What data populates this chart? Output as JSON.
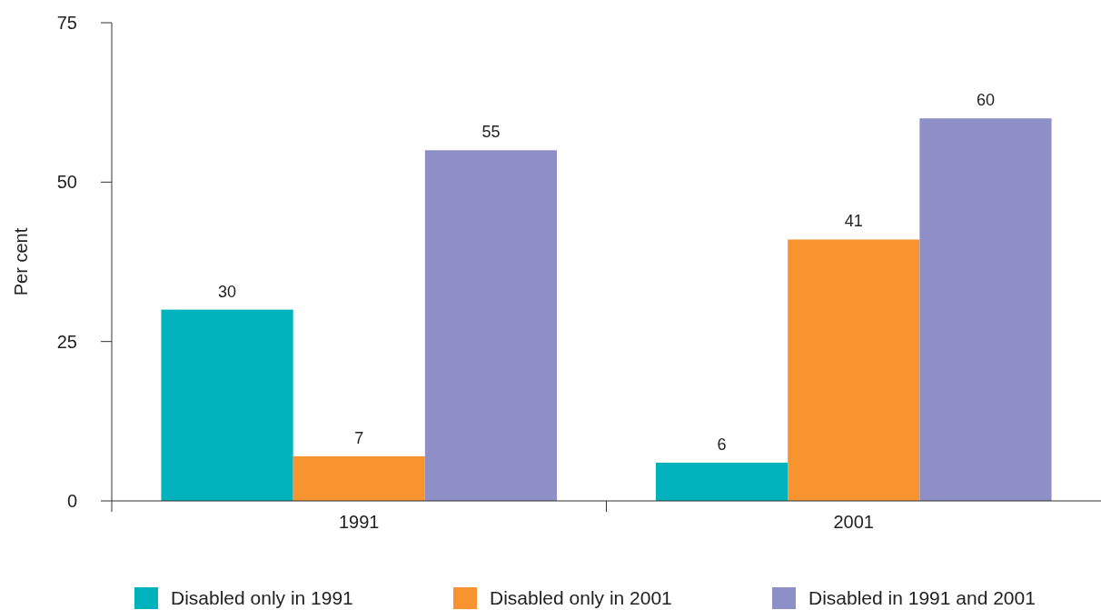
{
  "chart_data": {
    "type": "bar",
    "ylabel": "Per cent",
    "categories": [
      "1991",
      "2001"
    ],
    "series": [
      {
        "name": "Disabled only in 1991",
        "color": "#00b2bb",
        "values": [
          30,
          6
        ]
      },
      {
        "name": "Disabled only in 2001",
        "color": "#f7942f",
        "values": [
          7,
          41
        ]
      },
      {
        "name": "Disabled in 1991 and 2001",
        "color": "#8d8fc6",
        "values": [
          55,
          60
        ]
      }
    ],
    "ylim": [
      0,
      75
    ],
    "yticks": [
      0,
      25,
      50,
      75
    ],
    "data_labels": true,
    "grid": false,
    "legend": "bottom"
  }
}
